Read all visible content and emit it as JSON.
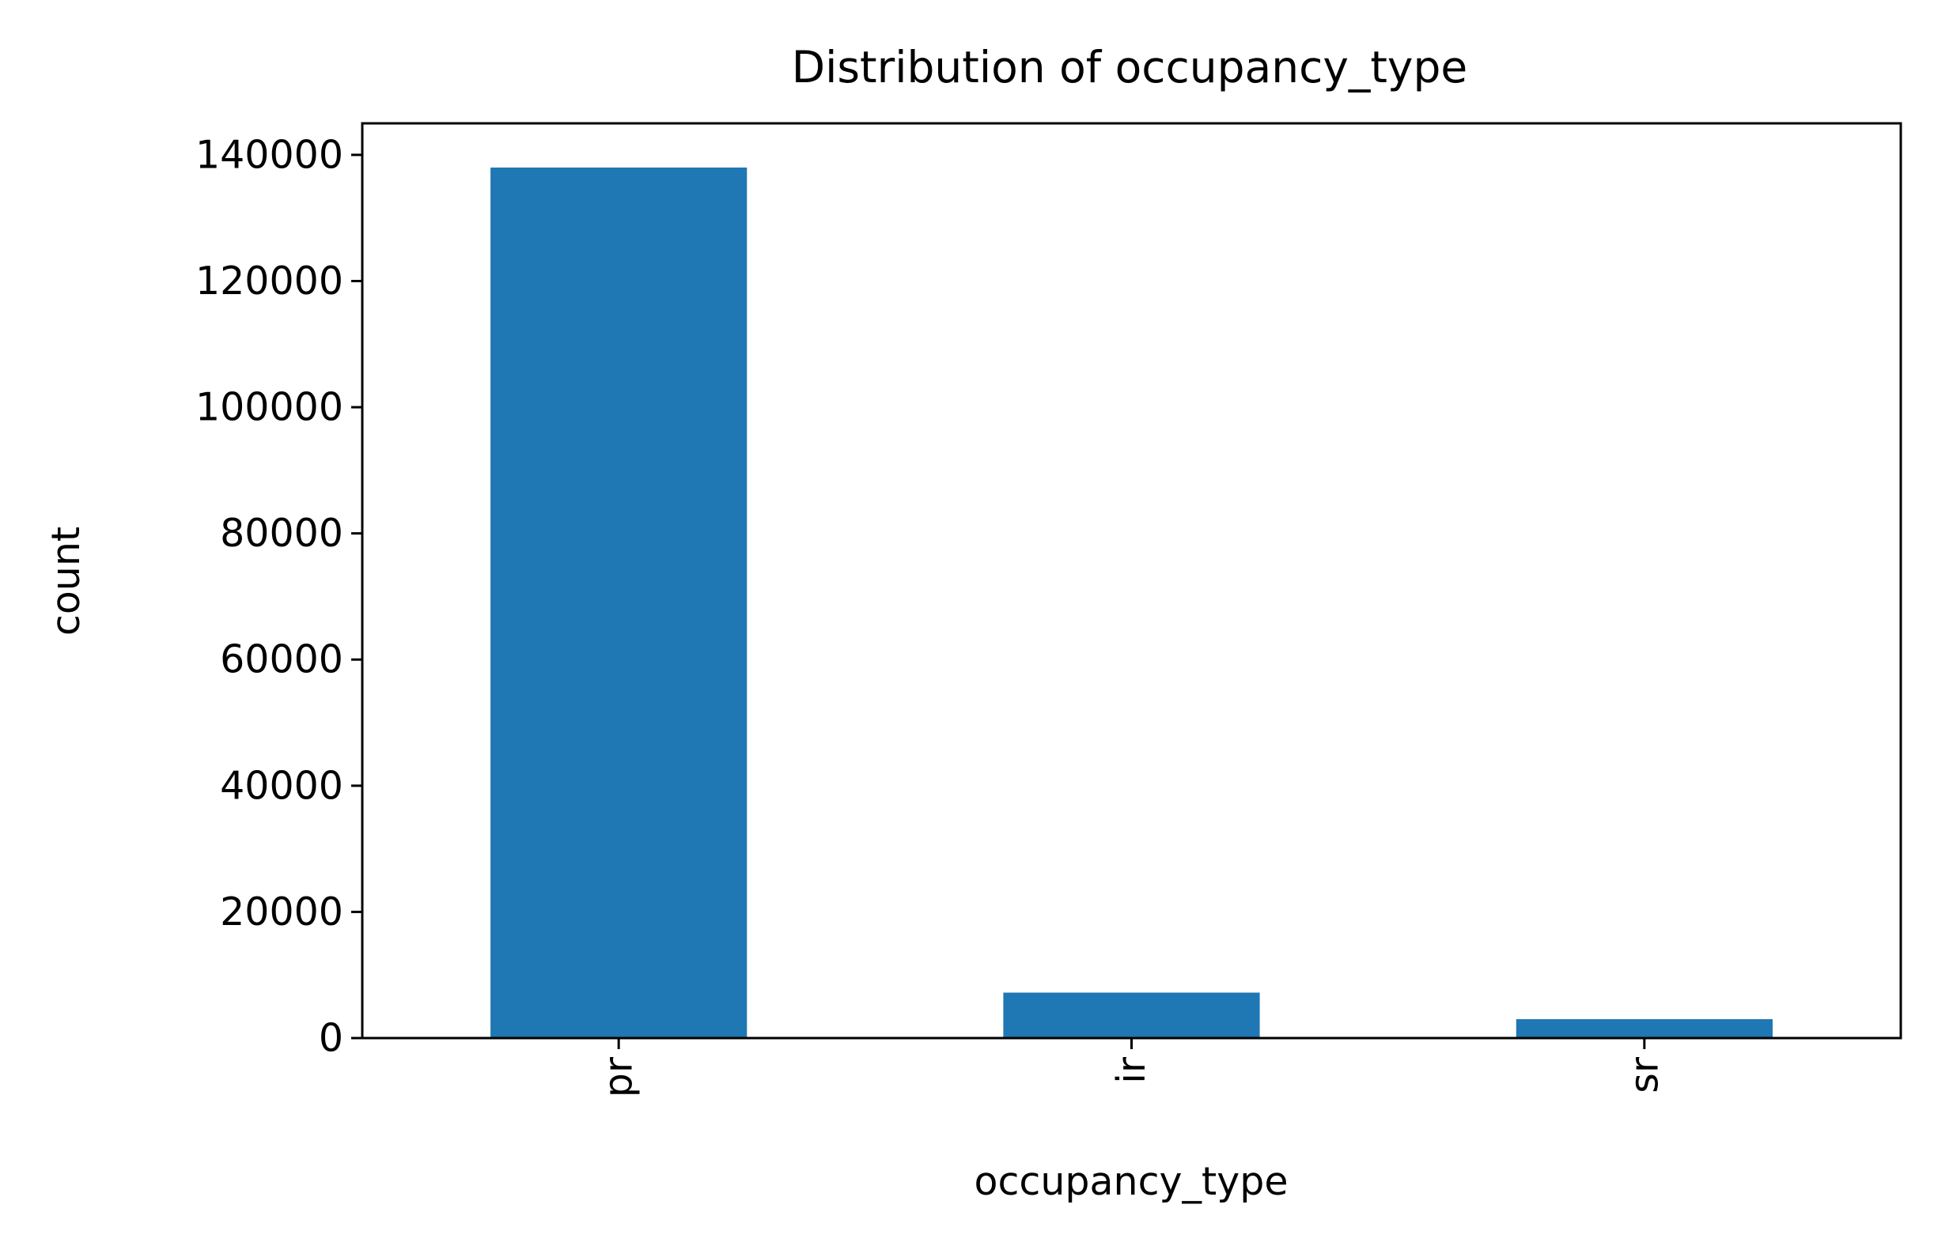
{
  "chart_data": {
    "type": "bar",
    "title": "Distribution of occupancy_type",
    "xlabel": "occupancy_type",
    "ylabel": "count",
    "categories": [
      "pr",
      "ir",
      "sr"
    ],
    "values": [
      138000,
      7200,
      3000
    ],
    "ylim": [
      0,
      145000
    ],
    "yticks": [
      {
        "value": 0,
        "label": "0"
      },
      {
        "value": 20000,
        "label": "20000"
      },
      {
        "value": 40000,
        "label": "40000"
      },
      {
        "value": 60000,
        "label": "60000"
      },
      {
        "value": 80000,
        "label": "80000"
      },
      {
        "value": 100000,
        "label": "100000"
      },
      {
        "value": 120000,
        "label": "120000"
      },
      {
        "value": 140000,
        "label": "140000"
      }
    ],
    "bar_color": "#1f77b4",
    "grid": false,
    "legend": false,
    "x_tick_rotation": "vertical"
  }
}
